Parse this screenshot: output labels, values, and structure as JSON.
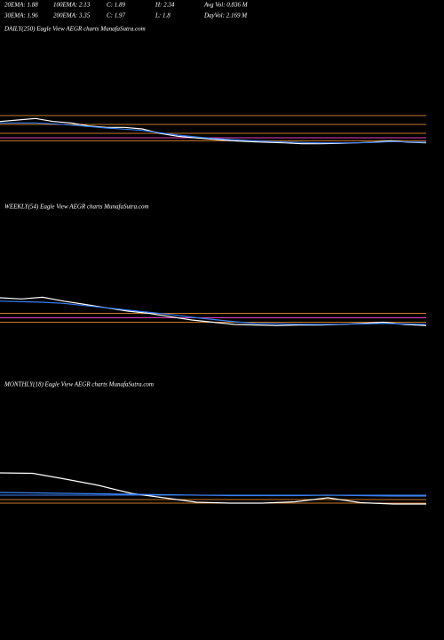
{
  "header": {
    "rows": [
      [
        "20EMA: 1.88",
        "100EMA: 2.13",
        "C: 1.89",
        "H: 2.34",
        "Avg Vol: 0.836  M"
      ],
      [
        "30EMA: 1.96",
        "200EMA: 3.35",
        "C: 1.97",
        "L: 1.8",
        "DayVol: 2.169 M"
      ]
    ]
  },
  "chart_data": [
    {
      "type": "line",
      "title": "DAILY(250) Eagle   View  AEGR charts MunafaSutra.com",
      "ylim": [
        1.5,
        3.0
      ],
      "levels": [
        {
          "value": 2.7,
          "color": "#c8782a"
        },
        {
          "value": 2.4,
          "color": "#c8782a"
        },
        {
          "value": 2.1,
          "color": "#c8782a"
        },
        {
          "value": 1.95,
          "color": "#e040c0"
        },
        {
          "value": 1.85,
          "color": "#c8782a"
        }
      ],
      "series": [
        {
          "color": "#ffffff",
          "values": [
            2.5,
            2.55,
            2.6,
            2.5,
            2.45,
            2.35,
            2.3,
            2.3,
            2.25,
            2.1,
            2.0,
            1.95,
            1.9,
            1.85,
            1.82,
            1.8,
            1.78,
            1.75,
            1.75,
            1.76,
            1.78,
            1.8,
            1.85,
            1.8,
            1.78
          ]
        },
        {
          "color": "#3a7ff0",
          "values": [
            2.45,
            2.45,
            2.45,
            2.42,
            2.38,
            2.33,
            2.28,
            2.24,
            2.2,
            2.12,
            2.04,
            1.98,
            1.93,
            1.89,
            1.86,
            1.83,
            1.81,
            1.79,
            1.78,
            1.78,
            1.78,
            1.79,
            1.82,
            1.81,
            1.8
          ]
        }
      ]
    },
    {
      "type": "line",
      "title": "WEEKLY(54) Eagle   View  AEGR charts MunafaSutra.com",
      "ylim": [
        1,
        5
      ],
      "levels": [
        {
          "value": 2.4,
          "color": "#c8782a"
        },
        {
          "value": 2.0,
          "color": "#e040c0"
        },
        {
          "value": 1.6,
          "color": "#c8782a"
        }
      ],
      "series": [
        {
          "color": "#ffffff",
          "values": [
            3.8,
            3.7,
            3.85,
            3.5,
            3.2,
            2.9,
            2.6,
            2.4,
            2.1,
            1.8,
            1.6,
            1.4,
            1.35,
            1.3,
            1.35,
            1.35,
            1.4,
            1.5,
            1.6,
            1.4,
            1.3
          ]
        },
        {
          "color": "#3a7ff0",
          "values": [
            3.5,
            3.45,
            3.4,
            3.3,
            3.1,
            2.9,
            2.7,
            2.5,
            2.3,
            2.05,
            1.85,
            1.65,
            1.5,
            1.45,
            1.42,
            1.4,
            1.42,
            1.45,
            1.5,
            1.45,
            1.4
          ]
        }
      ]
    },
    {
      "type": "line",
      "title": "MONTHLY(18) Eagle   View  AEGR charts MunafaSutra.com",
      "ylim": [
        0,
        10
      ],
      "levels": [
        {
          "value": 2.6,
          "color": "#3a7ff0"
        },
        {
          "value": 1.6,
          "color": "#c8782a"
        },
        {
          "value": 0.8,
          "color": "#c8782a"
        }
      ],
      "series": [
        {
          "color": "#ffffff",
          "values": [
            7.6,
            7.5,
            6.2,
            4.8,
            3.0,
            2.0,
            1.0,
            0.8,
            0.8,
            1.1,
            2.0,
            0.9,
            0.6,
            0.6
          ]
        },
        {
          "color": "#3a7ff0",
          "values": [
            3.2,
            3.1,
            3.0,
            2.9,
            2.8,
            2.7,
            2.6,
            2.5,
            2.5,
            2.5,
            2.6,
            2.5,
            2.4,
            2.4
          ]
        }
      ]
    }
  ]
}
